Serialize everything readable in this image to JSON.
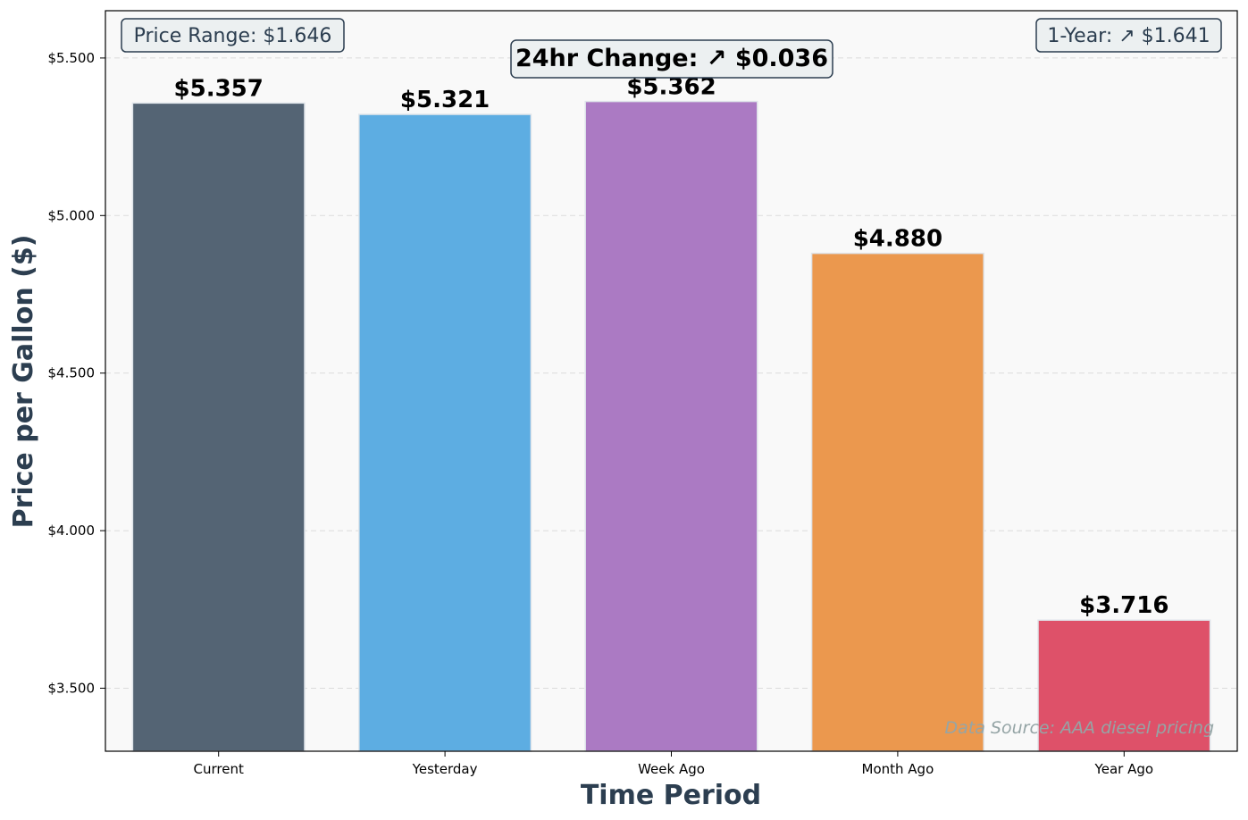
{
  "chart_data": {
    "type": "bar",
    "categories": [
      "Current",
      "Yesterday",
      "Week Ago",
      "Month Ago",
      "Year Ago"
    ],
    "values": [
      5.357,
      5.321,
      5.362,
      4.88,
      3.716
    ],
    "value_labels": [
      "$5.357",
      "$5.321",
      "$5.362",
      "$4.880",
      "$3.716"
    ],
    "colors": [
      "#546474",
      "#5dade2",
      "#ab7ac3",
      "#eb984e",
      "#de5169"
    ],
    "xlabel": "Time Period",
    "ylabel": "Price per Gallon ($)",
    "ylim": [
      3.3,
      5.65
    ],
    "yticks": [
      3.5,
      4.0,
      4.5,
      5.0,
      5.5
    ],
    "ytick_labels": [
      "$3.500",
      "$4.000",
      "$4.500",
      "$5.000",
      "$5.500"
    ],
    "grid": "horizontal dashed",
    "background": "#f9f9f9",
    "annotations": {
      "price_range": "Price Range: $1.646",
      "change_24hr": "24hr Change: ↗ $0.036",
      "one_year": "1-Year: ↗ $1.641",
      "source": "Data Source: AAA diesel pricing"
    }
  }
}
